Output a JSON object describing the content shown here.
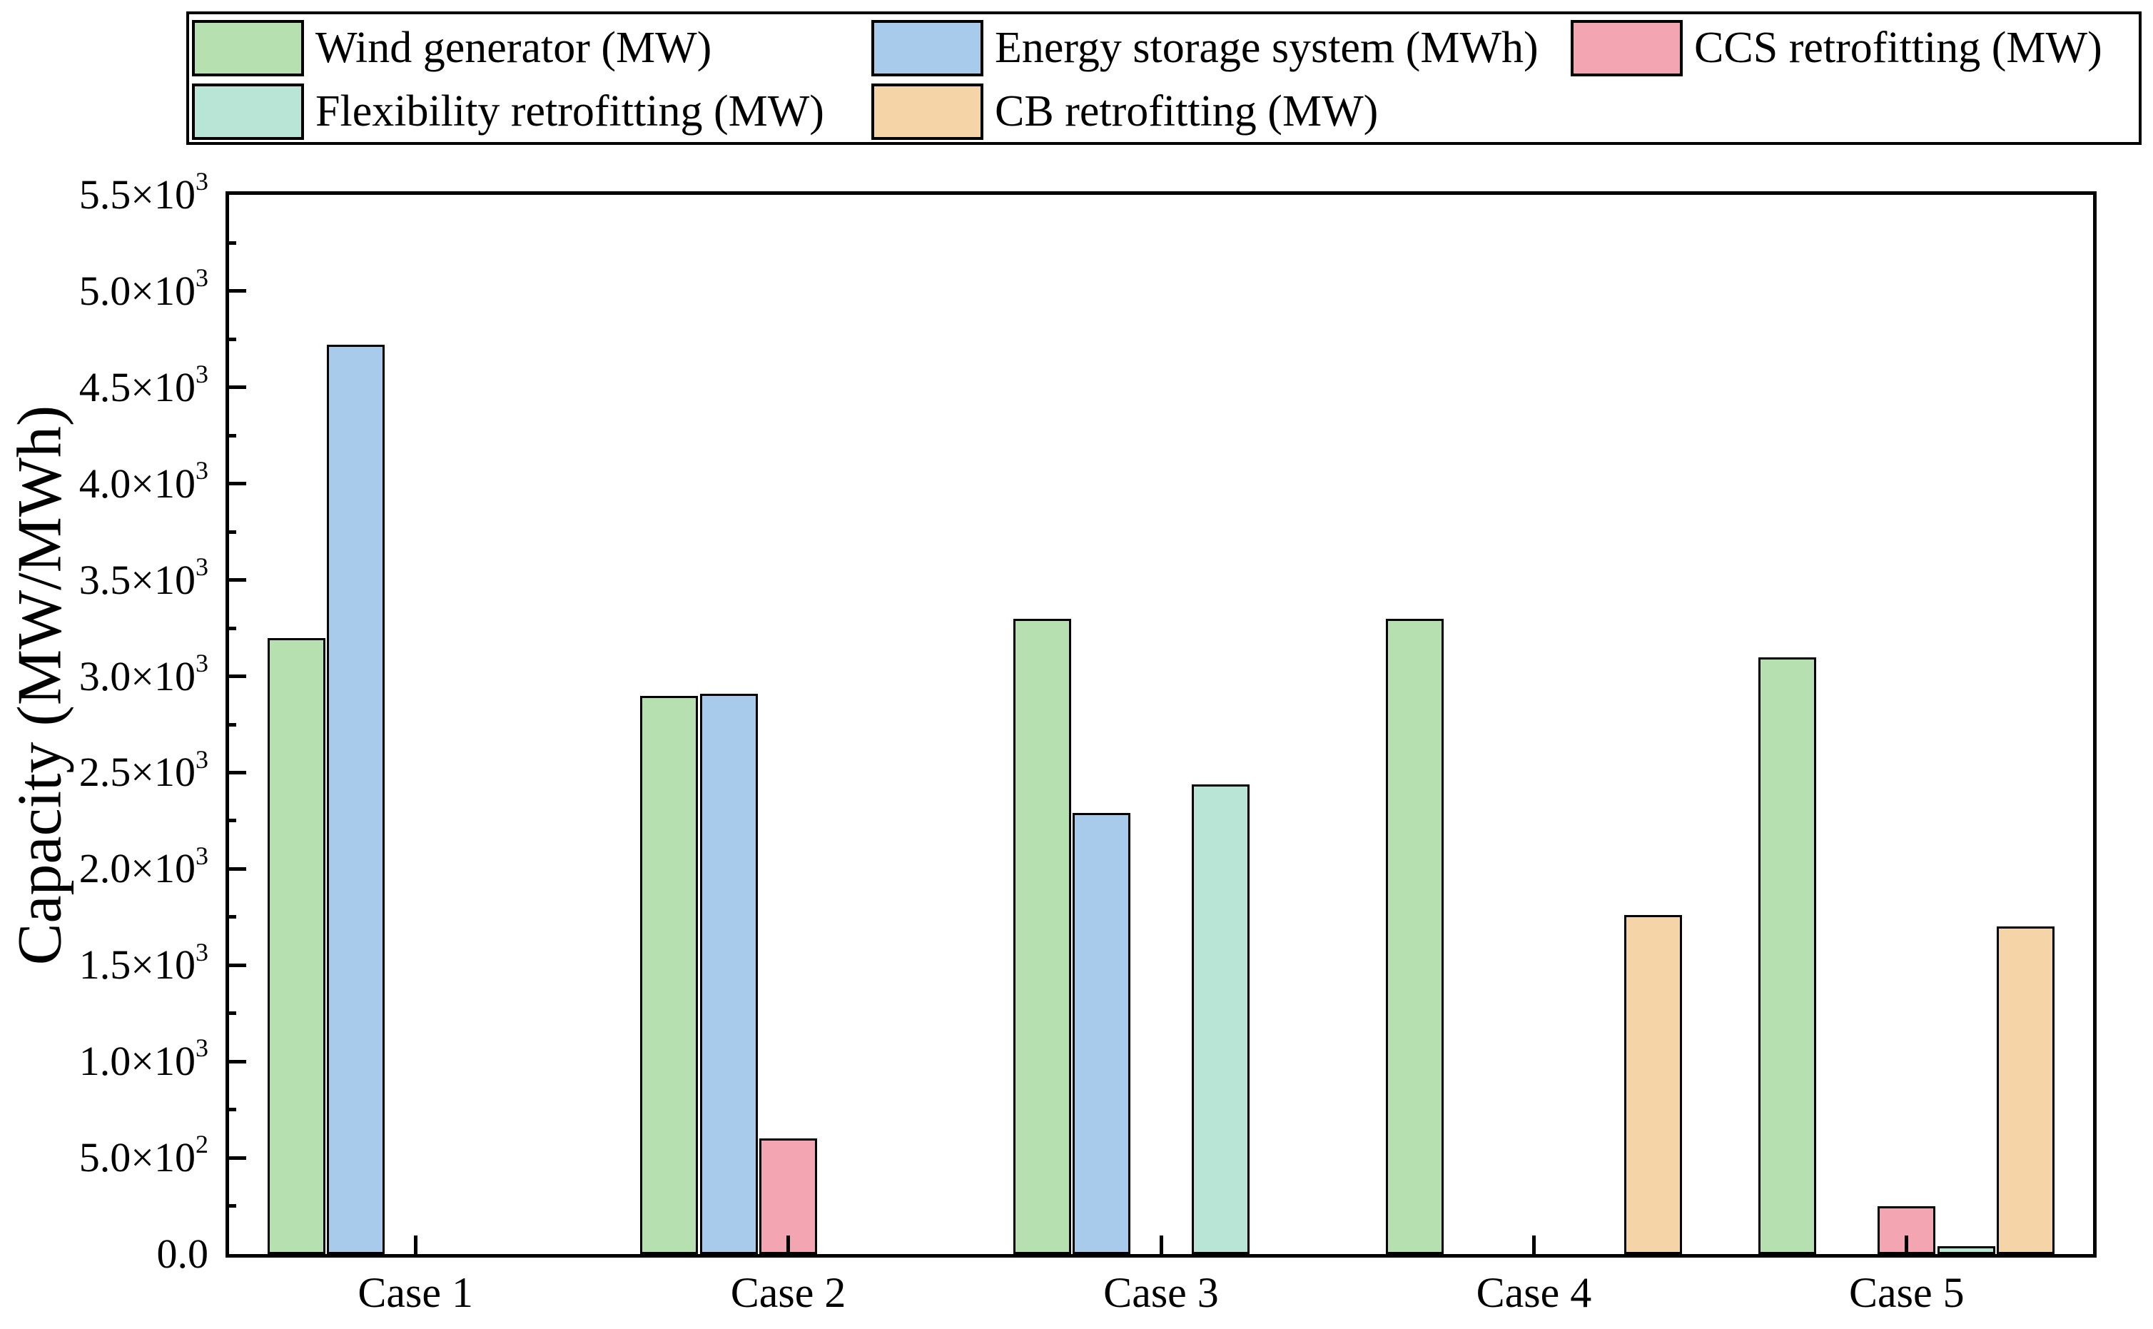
{
  "figure": {
    "background": "#ffffff",
    "frame_color": "#000000"
  },
  "legend": {
    "items": [
      {
        "label": "Wind generator (MW)",
        "color": "#b6e0b0"
      },
      {
        "label": "Energy storage system (MWh)",
        "color": "#a8cbec"
      },
      {
        "label": "CCS retrofitting (MW)",
        "color": "#f3a6b1"
      },
      {
        "label": "Flexibility retrofitting (MW)",
        "color": "#b9e5d6"
      },
      {
        "label": "CB retrofitting (MW)",
        "color": "#f5d5a8"
      }
    ]
  },
  "chart_data": {
    "type": "bar",
    "title": "",
    "xlabel": "",
    "ylabel": "Capacity (MW/MWh)",
    "ylim": [
      0,
      5500
    ],
    "grid": false,
    "legend_position": "top",
    "categories": [
      "Case 1",
      "Case 2",
      "Case 3",
      "Case 4",
      "Case 5"
    ],
    "series": [
      {
        "name": "Wind generator (MW)",
        "short": "wind-generator",
        "color": "#b6e0b0",
        "values": [
          3200,
          2900,
          3300,
          3300,
          3100
        ]
      },
      {
        "name": "Energy storage system (MWh)",
        "short": "energy-storage-system",
        "color": "#a8cbec",
        "values": [
          4720,
          2910,
          2290,
          0,
          0
        ]
      },
      {
        "name": "CCS retrofitting (MW)",
        "short": "ccs-retrofitting",
        "color": "#f3a6b1",
        "values": [
          0,
          600,
          0,
          0,
          250
        ]
      },
      {
        "name": "Flexibility retrofitting (MW)",
        "short": "flexibility-retrofitting",
        "color": "#b9e5d6",
        "values": [
          0,
          0,
          2440,
          0,
          40
        ]
      },
      {
        "name": "CB retrofitting (MW)",
        "short": "cb-retrofitting",
        "color": "#f5d5a8",
        "values": [
          0,
          0,
          0,
          1760,
          1700
        ]
      }
    ],
    "y_ticks": [
      {
        "value": 0,
        "text": "0.0"
      },
      {
        "value": 500,
        "text": "5.0×10^2"
      },
      {
        "value": 1000,
        "text": "1.0×10^3"
      },
      {
        "value": 1500,
        "text": "1.5×10^3"
      },
      {
        "value": 2000,
        "text": "2.0×10^3"
      },
      {
        "value": 2500,
        "text": "2.5×10^3"
      },
      {
        "value": 3000,
        "text": "3.0×10^3"
      },
      {
        "value": 3500,
        "text": "3.5×10^3"
      },
      {
        "value": 4000,
        "text": "4.0×10^3"
      },
      {
        "value": 4500,
        "text": "4.5×10^3"
      },
      {
        "value": 5000,
        "text": "5.0×10^3"
      },
      {
        "value": 5500,
        "text": "5.5×10^3"
      }
    ],
    "y_minor_tick_step": 250
  }
}
